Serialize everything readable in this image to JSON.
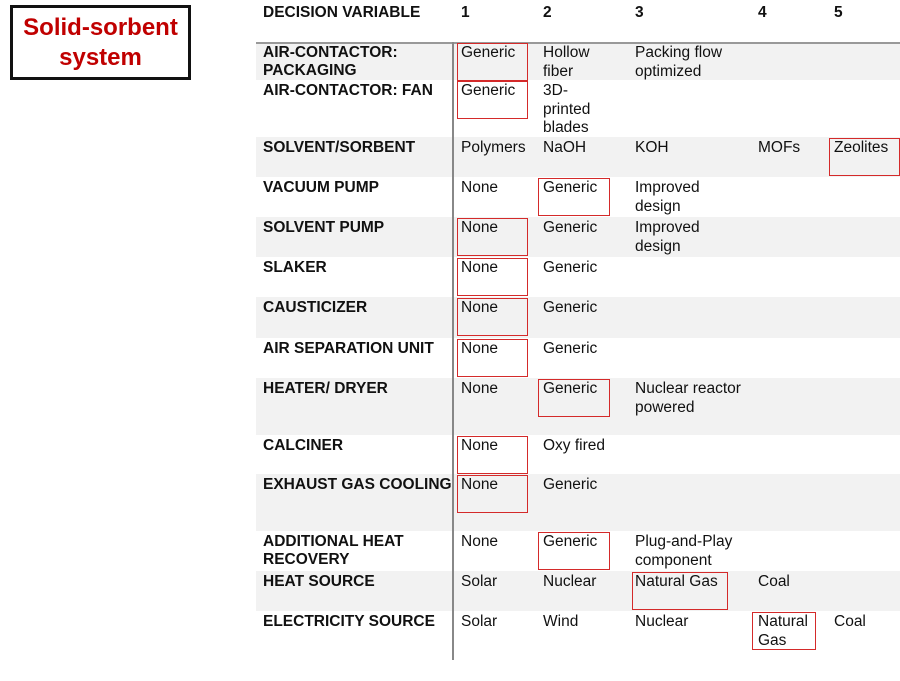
{
  "title": "Solid-sorbent system",
  "header": {
    "variable": "DECISION VARIABLE",
    "options": [
      "1",
      "2",
      "3",
      "4",
      "5"
    ]
  },
  "colors": {
    "title": "#c00000",
    "selection": "#d42a2a",
    "row_shade": "#f2f2f2"
  },
  "rows": [
    {
      "label": "AIR-CONTACTOR: PACKAGING",
      "options": [
        "Generic",
        "Hollow fiber",
        "Packing flow optimized"
      ],
      "selected": 1
    },
    {
      "label": "AIR-CONTACTOR: FAN",
      "options": [
        "Generic",
        "3D-printed blades"
      ],
      "selected": 1
    },
    {
      "label": "SOLVENT/SORBENT",
      "options": [
        "Polymers",
        "NaOH",
        "KOH",
        "MOFs",
        "Zeolites"
      ],
      "selected": 5
    },
    {
      "label": "VACUUM PUMP",
      "options": [
        "None",
        "Generic",
        "Improved design"
      ],
      "selected": 2
    },
    {
      "label": "SOLVENT PUMP",
      "options": [
        "None",
        "Generic",
        "Improved design"
      ],
      "selected": 1
    },
    {
      "label": "SLAKER",
      "options": [
        "None",
        "Generic"
      ],
      "selected": 1
    },
    {
      "label": "CAUSTICIZER",
      "options": [
        "None",
        "Generic"
      ],
      "selected": 1
    },
    {
      "label": "AIR SEPARATION UNIT",
      "options": [
        "None",
        "Generic"
      ],
      "selected": 1
    },
    {
      "label": "HEATER/ DRYER",
      "options": [
        "None",
        "Generic",
        "Nuclear reactor powered"
      ],
      "selected": 2
    },
    {
      "label": "CALCINER",
      "options": [
        "None",
        "Oxy fired"
      ],
      "selected": 1
    },
    {
      "label": "EXHAUST GAS COOLING",
      "options": [
        "None",
        "Generic"
      ],
      "selected": 1
    },
    {
      "label": "ADDITIONAL HEAT RECOVERY",
      "options": [
        "None",
        "Generic",
        "Plug-and-Play component"
      ],
      "selected": 2
    },
    {
      "label": "HEAT SOURCE",
      "options": [
        "Solar",
        "Nuclear",
        "Natural Gas",
        "Coal"
      ],
      "selected": 3
    },
    {
      "label": "ELECTRICITY SOURCE",
      "options": [
        "Solar",
        "Wind",
        "Nuclear",
        "Natural Gas",
        "Coal"
      ],
      "selected": 4
    }
  ]
}
